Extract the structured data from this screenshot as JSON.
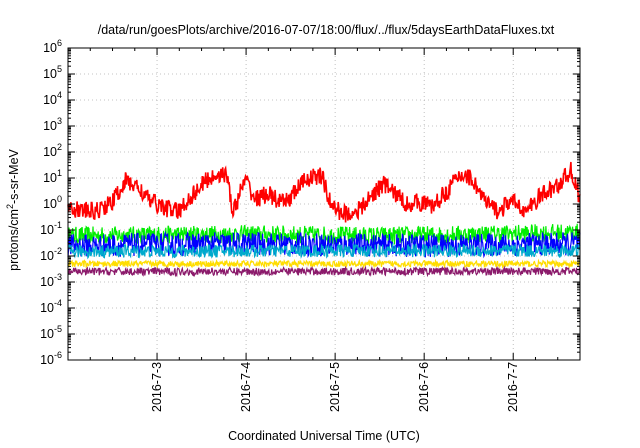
{
  "chart_data": {
    "type": "line",
    "title": "/data/run/goesPlots/archive/2016-07-07/18:00/flux/../flux/5daysEarthDataFluxes.txt",
    "xlabel": "Coordinated Universal Time (UTC)",
    "ylabel_base": "protons/cm",
    "ylabel_sup": "2",
    "ylabel_rest": "-s-sr-MeV",
    "y_scale": "log",
    "ylim_exp": [
      -6,
      6
    ],
    "y_ticks": [
      {
        "base": "10",
        "exp": "-6",
        "value_exp": -6
      },
      {
        "base": "10",
        "exp": "-5",
        "value_exp": -5
      },
      {
        "base": "10",
        "exp": "-4",
        "value_exp": -4
      },
      {
        "base": "10",
        "exp": "-3",
        "value_exp": -3
      },
      {
        "base": "10",
        "exp": "-2",
        "value_exp": -2
      },
      {
        "base": "10",
        "exp": "-1",
        "value_exp": -1
      },
      {
        "base": "10",
        "exp": "0",
        "value_exp": 0
      },
      {
        "base": "10",
        "exp": "1",
        "value_exp": 1
      },
      {
        "base": "10",
        "exp": "2",
        "value_exp": 2
      },
      {
        "base": "10",
        "exp": "3",
        "value_exp": 3
      },
      {
        "base": "10",
        "exp": "4",
        "value_exp": 4
      },
      {
        "base": "10",
        "exp": "5",
        "value_exp": 5
      },
      {
        "base": "10",
        "exp": "6",
        "value_exp": 6
      }
    ],
    "x_range_days": [
      0,
      5.75
    ],
    "x_ticks": [
      {
        "label": "2016-7-3",
        "day": 1
      },
      {
        "label": "2016-7-4",
        "day": 2
      },
      {
        "label": "2016-7-5",
        "day": 3
      },
      {
        "label": "2016-7-6",
        "day": 4
      },
      {
        "label": "2016-7-7",
        "day": 5
      }
    ],
    "grid": true,
    "series": [
      {
        "color": "#ff0000",
        "noise": 0.35,
        "points": [
          [
            0,
            1.0
          ],
          [
            0.1,
            0.6
          ],
          [
            0.3,
            0.5
          ],
          [
            0.5,
            1.2
          ],
          [
            0.65,
            8
          ],
          [
            0.8,
            4
          ],
          [
            0.9,
            1.5
          ],
          [
            1.0,
            1.0
          ],
          [
            1.15,
            0.6
          ],
          [
            1.25,
            0.5
          ],
          [
            1.35,
            1.5
          ],
          [
            1.55,
            8
          ],
          [
            1.7,
            15
          ],
          [
            1.8,
            10
          ],
          [
            1.85,
            0.4
          ],
          [
            1.95,
            4
          ],
          [
            2.0,
            8
          ],
          [
            2.1,
            1.5
          ],
          [
            2.25,
            2.5
          ],
          [
            2.4,
            1.0
          ],
          [
            2.5,
            1.8
          ],
          [
            2.6,
            5
          ],
          [
            2.7,
            10
          ],
          [
            2.85,
            12
          ],
          [
            2.95,
            1.0
          ],
          [
            3.05,
            0.5
          ],
          [
            3.15,
            0.4
          ],
          [
            3.3,
            0.7
          ],
          [
            3.45,
            3
          ],
          [
            3.55,
            6
          ],
          [
            3.65,
            3
          ],
          [
            3.8,
            1.0
          ],
          [
            3.95,
            1.2
          ],
          [
            4.1,
            0.8
          ],
          [
            4.25,
            3
          ],
          [
            4.35,
            8
          ],
          [
            4.45,
            15
          ],
          [
            4.55,
            8
          ],
          [
            4.7,
            1.0
          ],
          [
            4.85,
            0.5
          ],
          [
            4.95,
            1.2
          ],
          [
            5.05,
            1.0
          ],
          [
            5.15,
            0.5
          ],
          [
            5.3,
            2.0
          ],
          [
            5.5,
            5
          ],
          [
            5.65,
            20
          ],
          [
            5.75,
            1.5
          ]
        ]
      },
      {
        "color": "#00ee00",
        "noise": 0.35,
        "points": [
          [
            0,
            0.06
          ],
          [
            2,
            0.07
          ],
          [
            3.5,
            0.06
          ],
          [
            5.75,
            0.08
          ]
        ]
      },
      {
        "color": "#0000ff",
        "noise": 0.45,
        "points": [
          [
            0,
            0.025
          ],
          [
            2,
            0.03
          ],
          [
            4,
            0.025
          ],
          [
            5.75,
            0.03
          ]
        ]
      },
      {
        "color": "#00aacc",
        "noise": 0.25,
        "points": [
          [
            0,
            0.015
          ],
          [
            3,
            0.016
          ],
          [
            5.75,
            0.016
          ]
        ]
      },
      {
        "color": "#ffdd00",
        "noise": 0.12,
        "points": [
          [
            0,
            0.005
          ],
          [
            5.75,
            0.005
          ]
        ]
      },
      {
        "color": "#8b1a6b",
        "noise": 0.15,
        "points": [
          [
            0,
            0.0025
          ],
          [
            5.75,
            0.0026
          ]
        ]
      }
    ]
  }
}
